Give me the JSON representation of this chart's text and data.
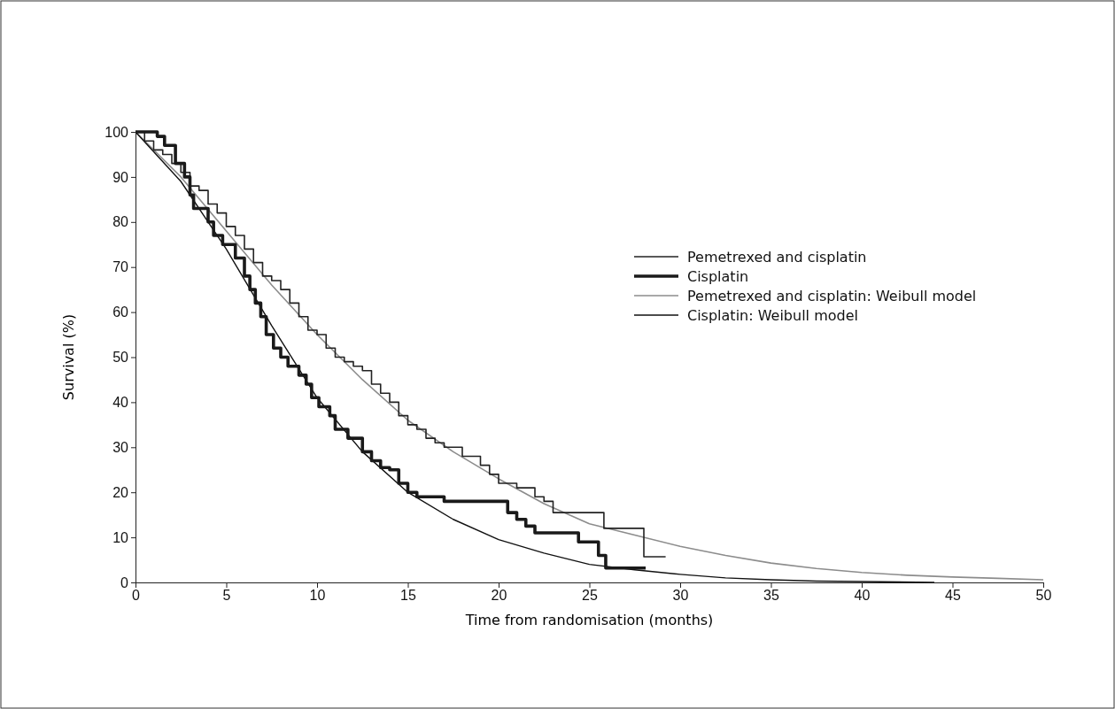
{
  "chart_data": {
    "type": "step",
    "xlabel": "Time from randomisation (months)",
    "ylabel": "Survival (%)",
    "xlim": [
      0,
      50
    ],
    "xticks": [
      0,
      5,
      10,
      15,
      20,
      25,
      30,
      35,
      40,
      45,
      50
    ],
    "ylim": [
      0,
      100
    ],
    "yticks": [
      0,
      10,
      20,
      30,
      40,
      50,
      60,
      70,
      80,
      90,
      100
    ],
    "grid": false,
    "legend": "right",
    "marker": "none",
    "series": [
      {
        "name": "Pemetrexed and cisplatin",
        "color": "#222222",
        "x": [
          0,
          0.5,
          1,
          1.5,
          2,
          2.5,
          3,
          3.5,
          4,
          4.5,
          5,
          5.5,
          6,
          6.5,
          7,
          7.5,
          8,
          8.5,
          9,
          9.5,
          10,
          10.5,
          11,
          11.5,
          12,
          12.5,
          13,
          13.5,
          14,
          14.5,
          15,
          15.5,
          16,
          16.5,
          17,
          18,
          19,
          19.5,
          20,
          21,
          22,
          22.5,
          23,
          25.8,
          28,
          29.2
        ],
        "values": [
          100,
          98,
          96,
          95,
          93,
          91,
          88,
          87,
          84,
          82,
          79,
          77,
          74,
          71,
          68,
          67,
          65,
          62,
          59,
          56,
          55,
          52,
          50,
          49,
          48,
          47,
          44,
          42,
          40,
          37,
          35,
          34,
          32,
          31,
          30,
          28,
          26,
          24,
          22,
          21,
          19,
          18,
          15.5,
          12,
          5.7,
          5.7
        ]
      },
      {
        "name": "Cisplatin",
        "color": "#1a1a1a",
        "x": [
          0,
          1.2,
          1.6,
          2.2,
          2.7,
          3,
          3.2,
          4,
          4.3,
          4.8,
          5.5,
          6,
          6.3,
          6.6,
          6.9,
          7.2,
          7.6,
          8,
          8.4,
          9,
          9.4,
          9.7,
          10.1,
          10.7,
          11,
          11.7,
          12.5,
          13,
          13.5,
          14,
          14.5,
          15,
          15.5,
          17,
          20.5,
          21,
          21.5,
          22,
          24.4,
          25.5,
          25.9,
          28.1
        ],
        "values": [
          100,
          99,
          97,
          93,
          90,
          86,
          83,
          80,
          77,
          75,
          72,
          68,
          65,
          62,
          59,
          55,
          52,
          50,
          48,
          46,
          44,
          41,
          39,
          37,
          34,
          32,
          29,
          27,
          25.5,
          25,
          22,
          20,
          19,
          18,
          15.5,
          14,
          12.5,
          11,
          9,
          6,
          3.2,
          3.2
        ]
      },
      {
        "name": "Pemetrexed and cisplatin: Weibull model",
        "type": "line",
        "color": "#8c8c8c",
        "x": [
          0,
          2.5,
          5,
          7.5,
          10,
          12.5,
          15,
          17.5,
          20,
          22.5,
          25,
          27.5,
          30,
          32.5,
          35,
          37.5,
          40,
          42.5,
          45,
          47.5,
          50
        ],
        "values": [
          100,
          90,
          78,
          66,
          55,
          45,
          36,
          29,
          23,
          17.5,
          13,
          10.5,
          8,
          6,
          4.3,
          3.1,
          2.2,
          1.6,
          1.2,
          0.9,
          0.6
        ]
      },
      {
        "name": "Cisplatin: Weibull model",
        "type": "line",
        "color": "#111111",
        "x": [
          0,
          2.5,
          5,
          7.5,
          10,
          12.5,
          15,
          17.5,
          20,
          22.5,
          25,
          27.5,
          30,
          32.5,
          35,
          37.5,
          40,
          44
        ],
        "values": [
          100,
          89,
          74,
          57,
          41,
          29,
          20,
          14,
          9.5,
          6.5,
          4,
          2.8,
          1.8,
          1,
          0.6,
          0.3,
          0.2,
          0
        ]
      }
    ]
  }
}
